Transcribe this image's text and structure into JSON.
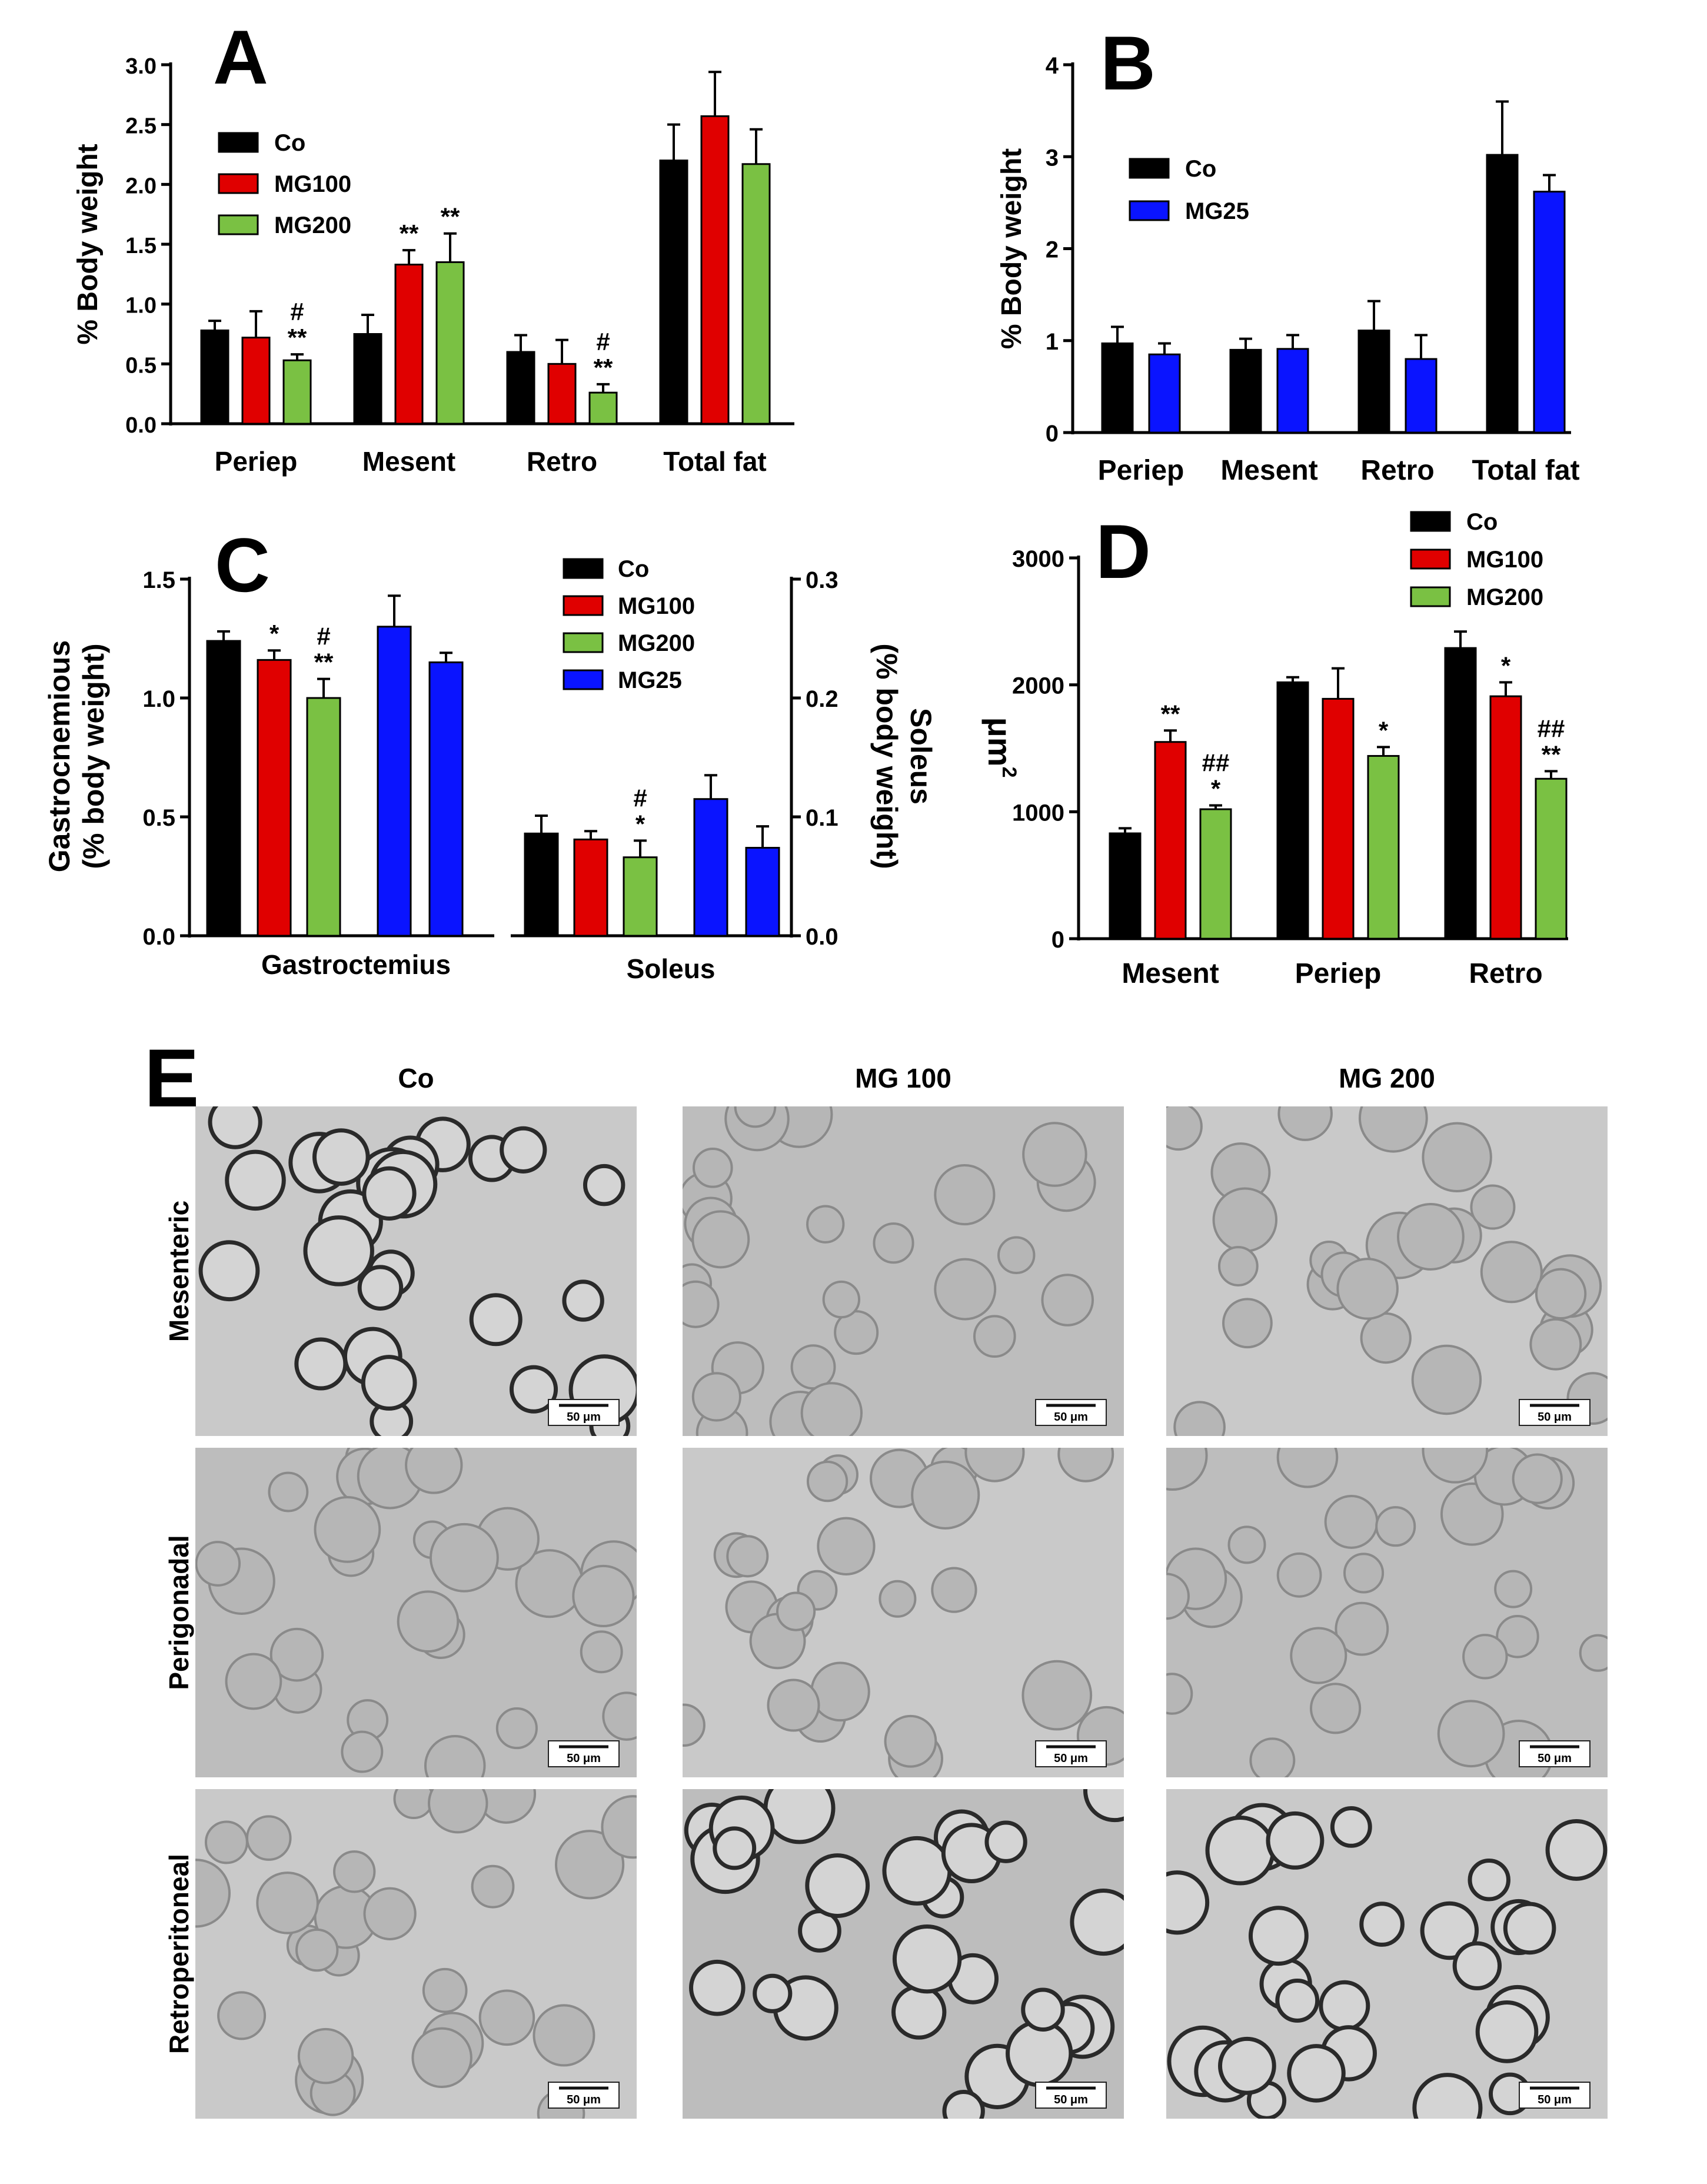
{
  "colors": {
    "Co": "#000000",
    "MG100": "#e00000",
    "MG200": "#7ac143",
    "MG25": "#0a14ff"
  },
  "chart_data": [
    {
      "id": "A",
      "type": "bar",
      "panel_letter": "A",
      "categories": [
        "Periep",
        "Mesent",
        "Retro",
        "Total fat"
      ],
      "ylabel": "% Body weight",
      "xlabel": "",
      "ylim": [
        0,
        3.0
      ],
      "yticks": [
        "0.0",
        "0.5",
        "1.0",
        "1.5",
        "2.0",
        "2.5",
        "3.0"
      ],
      "legend": [
        "Co",
        "MG100",
        "MG200"
      ],
      "series": [
        {
          "name": "Co",
          "values": [
            0.78,
            0.75,
            0.6,
            2.2
          ],
          "errors": [
            0.08,
            0.16,
            0.14,
            0.3
          ]
        },
        {
          "name": "MG100",
          "values": [
            0.72,
            1.33,
            0.5,
            2.57
          ],
          "errors": [
            0.22,
            0.12,
            0.2,
            0.37
          ]
        },
        {
          "name": "MG200",
          "values": [
            0.53,
            1.35,
            0.26,
            2.17
          ],
          "errors": [
            0.05,
            0.24,
            0.07,
            0.29
          ]
        }
      ],
      "annotations": [
        {
          "category": "Periep",
          "series": "MG200",
          "lines": [
            "#",
            "**"
          ]
        },
        {
          "category": "Mesent",
          "series": "MG100",
          "lines": [
            "**"
          ]
        },
        {
          "category": "Mesent",
          "series": "MG200",
          "lines": [
            "**"
          ]
        },
        {
          "category": "Retro",
          "series": "MG200",
          "lines": [
            "#",
            "**"
          ]
        }
      ]
    },
    {
      "id": "B",
      "type": "bar",
      "panel_letter": "B",
      "categories": [
        "Periep",
        "Mesent",
        "Retro",
        "Total fat"
      ],
      "ylabel": "% Body weight",
      "xlabel": "",
      "ylim": [
        0,
        4
      ],
      "yticks": [
        "0",
        "1",
        "2",
        "3",
        "4"
      ],
      "legend": [
        "Co",
        "MG25"
      ],
      "series": [
        {
          "name": "Co",
          "values": [
            0.97,
            0.9,
            1.11,
            3.02
          ],
          "errors": [
            0.18,
            0.12,
            0.32,
            0.58
          ]
        },
        {
          "name": "MG25",
          "values": [
            0.85,
            0.91,
            0.8,
            2.62
          ],
          "errors": [
            0.12,
            0.15,
            0.26,
            0.18
          ]
        }
      ],
      "annotations": []
    },
    {
      "id": "C",
      "type": "bar",
      "panel_letter": "C",
      "categories": [
        "Gastroctemius",
        "Soleus"
      ],
      "ylabel": [
        "Gastrocnemious",
        "(% body weight)"
      ],
      "y2label": [
        "Soleus",
        "(% body weight)"
      ],
      "ylim": [
        0,
        1.5
      ],
      "yticks": [
        "0.0",
        "0.5",
        "1.0",
        "1.5"
      ],
      "y2lim": [
        0,
        0.3
      ],
      "y2ticks": [
        "0.0",
        "0.1",
        "0.2",
        "0.3"
      ],
      "legend": [
        "Co",
        "MG100",
        "MG200",
        "MG25"
      ],
      "groups": [
        {
          "category": "Gastroctemius",
          "axis": "left",
          "values": [
            1.24,
            1.16,
            1.0,
            1.3
          ],
          "errors": [
            0.04,
            0.04,
            0.08,
            0.13
          ]
        },
        {
          "category": "Soleus",
          "axis": "right",
          "values": [
            0.086,
            0.081,
            0.066,
            0.115
          ],
          "errors": [
            0.015,
            0.007,
            0.014,
            0.02
          ]
        }
      ],
      "gastro_extra": {
        "MG25": 1.15,
        "MG25_error": 0.04
      },
      "soleus_extra": {
        "MG25": 0.074,
        "MG25_error": 0.018
      },
      "annotations": [
        {
          "category": "Gastroctemius",
          "series": "MG100",
          "lines": [
            "*"
          ]
        },
        {
          "category": "Gastroctemius",
          "series": "MG200",
          "lines": [
            "#",
            "**"
          ]
        },
        {
          "category": "Soleus",
          "series": "MG200",
          "lines": [
            "#",
            "*"
          ]
        }
      ]
    },
    {
      "id": "D",
      "type": "bar",
      "panel_letter": "D",
      "categories": [
        "Mesent",
        "Periep",
        "Retro"
      ],
      "ylabel": "μm",
      "ylabel_sup": "2",
      "ylim": [
        0,
        3000
      ],
      "yticks": [
        "0",
        "1000",
        "2000",
        "3000"
      ],
      "legend": [
        "Co",
        "MG100",
        "MG200"
      ],
      "series": [
        {
          "name": "Co",
          "values": [
            830,
            2020,
            2290
          ],
          "errors": [
            40,
            40,
            130
          ]
        },
        {
          "name": "MG100",
          "values": [
            1550,
            1890,
            1910
          ],
          "errors": [
            90,
            240,
            110
          ]
        },
        {
          "name": "MG200",
          "values": [
            1020,
            1440,
            1260
          ],
          "errors": [
            30,
            70,
            60
          ]
        }
      ],
      "annotations": [
        {
          "category": "Mesent",
          "series": "MG100",
          "lines": [
            "**"
          ]
        },
        {
          "category": "Mesent",
          "series": "MG200",
          "lines": [
            "##",
            "*"
          ]
        },
        {
          "category": "Periep",
          "series": "MG200",
          "lines": [
            "*"
          ]
        },
        {
          "category": "Retro",
          "series": "MG100",
          "lines": [
            "*"
          ]
        },
        {
          "category": "Retro",
          "series": "MG200",
          "lines": [
            "##",
            "**"
          ]
        }
      ]
    }
  ],
  "panel_e": {
    "letter": "E",
    "columns": [
      "Co",
      "MG 100",
      "MG 200"
    ],
    "rows": [
      "Mesenteric",
      "Perigonadal",
      "Retroperitoneal"
    ],
    "scale_bar": "50 μm"
  }
}
